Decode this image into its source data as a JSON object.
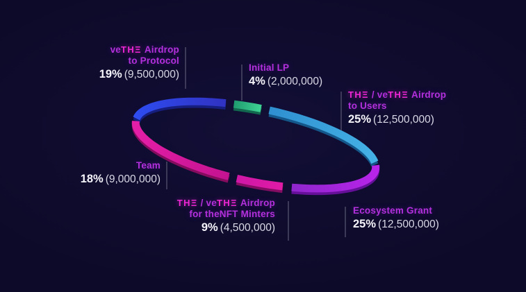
{
  "colors": {
    "background": "#0d0a29",
    "brand_pink": "#ee26d4",
    "label_purple": "#b330dc",
    "percent_white": "#f5f4fa",
    "amount_gray": "#d9d8e6",
    "leader_line": "#4b4a66"
  },
  "chart_data": {
    "type": "pie",
    "variant": "3d-elliptical-ring",
    "legend_position": "callouts-around-ring",
    "categories": [
      "veTHE Airdrop to Protocol",
      "Initial LP",
      "THE/veTHE Airdrop to Users",
      "Ecosystem Grant",
      "THE/veTHE Airdrop for theNFT Minters",
      "Team"
    ],
    "values": [
      19,
      4,
      25,
      25,
      9,
      18
    ],
    "segments": [
      {
        "id": "vethe-airdrop-to-protocol",
        "name": "veTHE Airdrop to Protocol",
        "percent": 19,
        "percent_label": "19%",
        "amount": 9500000,
        "amount_label": "(9,500,000)",
        "color_start": "#2e4cf0",
        "color_end": "#3032c2",
        "shadow_color": "#161e7f",
        "start_deg": 183,
        "end_deg": 252,
        "label_lines": [
          [
            {
              "t": "ve",
              "b": 0
            },
            {
              "t": "THΞ",
              "b": 1
            },
            {
              "t": " Airdrop",
              "b": 0
            }
          ],
          [
            {
              "t": "to Protocol",
              "b": 0
            }
          ]
        ]
      },
      {
        "id": "initial-lp",
        "name": "Initial LP",
        "percent": 4,
        "percent_label": "4%",
        "amount": 2000000,
        "amount_label": "(2,000,000)",
        "color_start": "#1f9b6f",
        "color_end": "#3fd394",
        "shadow_color": "#11684e",
        "start_deg": 256,
        "end_deg": 269,
        "label_lines": [
          [
            {
              "t": "Initial LP",
              "b": 0
            }
          ]
        ]
      },
      {
        "id": "the-vethe-airdrop-to-users",
        "name": "THE/veTHE Airdrop to Users",
        "percent": 25,
        "percent_label": "25%",
        "amount": 12500000,
        "amount_label": "(12,500,000)",
        "color_start": "#2f8fd0",
        "color_end": "#45b2e6",
        "shadow_color": "#14578b",
        "start_deg": 273,
        "end_deg": 349,
        "label_lines": [
          [
            {
              "t": "THΞ",
              "b": 1
            },
            {
              "t": " / ve",
              "b": 0
            },
            {
              "t": "THΞ",
              "b": 1
            },
            {
              "t": " Airdrop",
              "b": 0
            }
          ],
          [
            {
              "t": "to Users",
              "b": 0
            }
          ]
        ]
      },
      {
        "id": "ecosystem-grant",
        "name": "Ecosystem Grant",
        "percent": 25,
        "percent_label": "25%",
        "amount": 12500000,
        "amount_label": "(12,500,000)",
        "color_start": "#b824ea",
        "color_end": "#9026cc",
        "shadow_color": "#66109a",
        "start_deg": 353.5,
        "end_deg": 429,
        "label_lines": [
          [
            {
              "t": "Ecosystem Grant",
              "b": 0
            }
          ]
        ]
      },
      {
        "id": "the-vethe-airdrop-for-thenft-minters",
        "name": "THE/veTHE Airdrop for theNFT Minters",
        "percent": 9,
        "percent_label": "9%",
        "amount": 4500000,
        "amount_label": "(4,500,000)",
        "color_start": "#e01ba6",
        "color_end": "#cf17a6",
        "shadow_color": "#840c63",
        "start_deg": 433.5,
        "end_deg": 455.5,
        "label_lines": [
          [
            {
              "t": "THΞ",
              "b": 1
            },
            {
              "t": " / ve",
              "b": 0
            },
            {
              "t": "THΞ",
              "b": 1
            },
            {
              "t": " Airdrop",
              "b": 0
            }
          ],
          [
            {
              "t": "for theNFT Minters",
              "b": 0
            }
          ]
        ]
      },
      {
        "id": "team",
        "name": "Team",
        "percent": 18,
        "percent_label": "18%",
        "amount": 9000000,
        "amount_label": "(9,000,000)",
        "color_start": "#c41391",
        "color_end": "#e61fa8",
        "shadow_color": "#860c60",
        "start_deg": 459.5,
        "end_deg": 539,
        "label_lines": [
          [
            {
              "t": "Team",
              "b": 0
            }
          ]
        ]
      }
    ]
  }
}
